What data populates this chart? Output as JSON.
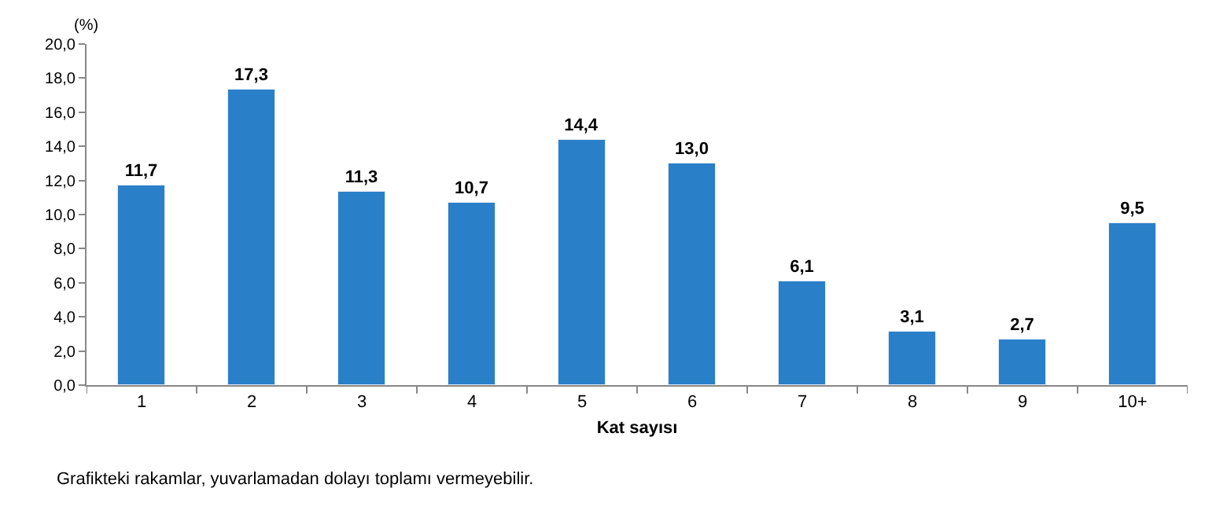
{
  "chart_data": {
    "type": "bar",
    "ylabel": "(%)",
    "xlabel": "Kat sayısı",
    "categories": [
      "1",
      "2",
      "3",
      "4",
      "5",
      "6",
      "7",
      "8",
      "9",
      "10+"
    ],
    "values": [
      11.7,
      17.3,
      11.3,
      10.7,
      14.4,
      13.0,
      6.1,
      3.1,
      2.7,
      9.5
    ],
    "value_labels": [
      "11,7",
      "17,3",
      "11,3",
      "10,7",
      "14,4",
      "13,0",
      "6,1",
      "3,1",
      "2,7",
      "9,5"
    ],
    "color": "#2a7fc9",
    "ylim": [
      0,
      20
    ],
    "yticks": [
      {
        "value": 0,
        "label": "0,0"
      },
      {
        "value": 2,
        "label": "2,0"
      },
      {
        "value": 4,
        "label": "4,0"
      },
      {
        "value": 6,
        "label": "6,0"
      },
      {
        "value": 8,
        "label": "8,0"
      },
      {
        "value": 10,
        "label": "10,0"
      },
      {
        "value": 12,
        "label": "12,0"
      },
      {
        "value": 14,
        "label": "14,0"
      },
      {
        "value": 16,
        "label": "16,0"
      },
      {
        "value": 18,
        "label": "18,0"
      },
      {
        "value": 20,
        "label": "20,0"
      }
    ],
    "legend": false,
    "annotations": [
      "Grafikteki rakamlar, yuvarlamadan dolayı toplamı vermeyebilir."
    ]
  }
}
